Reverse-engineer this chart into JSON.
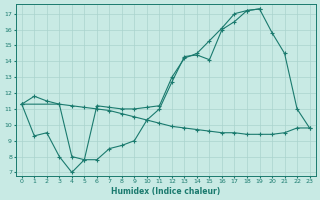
{
  "xlabel": "Humidex (Indice chaleur)",
  "background_color": "#c8eae4",
  "line_color": "#1a7a6e",
  "grid_color": "#aad4ce",
  "xlim": [
    -0.5,
    23.5
  ],
  "ylim": [
    6.8,
    17.6
  ],
  "yticks": [
    7,
    8,
    9,
    10,
    11,
    12,
    13,
    14,
    15,
    16,
    17
  ],
  "xticks": [
    0,
    1,
    2,
    3,
    4,
    5,
    6,
    7,
    8,
    9,
    10,
    11,
    12,
    13,
    14,
    15,
    16,
    17,
    18,
    19,
    20,
    21,
    22,
    23
  ],
  "line1_x": [
    0,
    1,
    2,
    3,
    4,
    5,
    6,
    7,
    8,
    9,
    10,
    11,
    12,
    13,
    14,
    15,
    16,
    17,
    18,
    19,
    20,
    21,
    22,
    23
  ],
  "line1_y": [
    11.3,
    11.8,
    11.5,
    11.3,
    11.2,
    11.1,
    11.0,
    10.9,
    10.7,
    10.5,
    10.3,
    10.1,
    9.9,
    9.8,
    9.7,
    9.6,
    9.5,
    9.5,
    9.4,
    9.4,
    9.4,
    9.5,
    9.8,
    9.8
  ],
  "line2_x": [
    0,
    1,
    2,
    3,
    4,
    5,
    6,
    7,
    8,
    9,
    10,
    11,
    12,
    13,
    14,
    15,
    16,
    17,
    18,
    19,
    20,
    21,
    22,
    23
  ],
  "line2_y": [
    11.3,
    9.3,
    9.5,
    8.0,
    7.0,
    7.8,
    7.8,
    8.5,
    8.7,
    9.0,
    10.3,
    11.0,
    12.7,
    14.3,
    14.4,
    14.1,
    16.0,
    16.5,
    17.2,
    17.3,
    15.8,
    14.5,
    11.0,
    9.8
  ],
  "line3_x": [
    0,
    3,
    4,
    5,
    6,
    7,
    8,
    9,
    10,
    11,
    12,
    13,
    14,
    15,
    16,
    17,
    18,
    19
  ],
  "line3_y": [
    11.3,
    11.3,
    8.0,
    7.8,
    11.2,
    11.1,
    11.0,
    11.0,
    11.1,
    11.2,
    13.0,
    14.2,
    14.5,
    15.3,
    16.1,
    17.0,
    17.2,
    17.3
  ]
}
